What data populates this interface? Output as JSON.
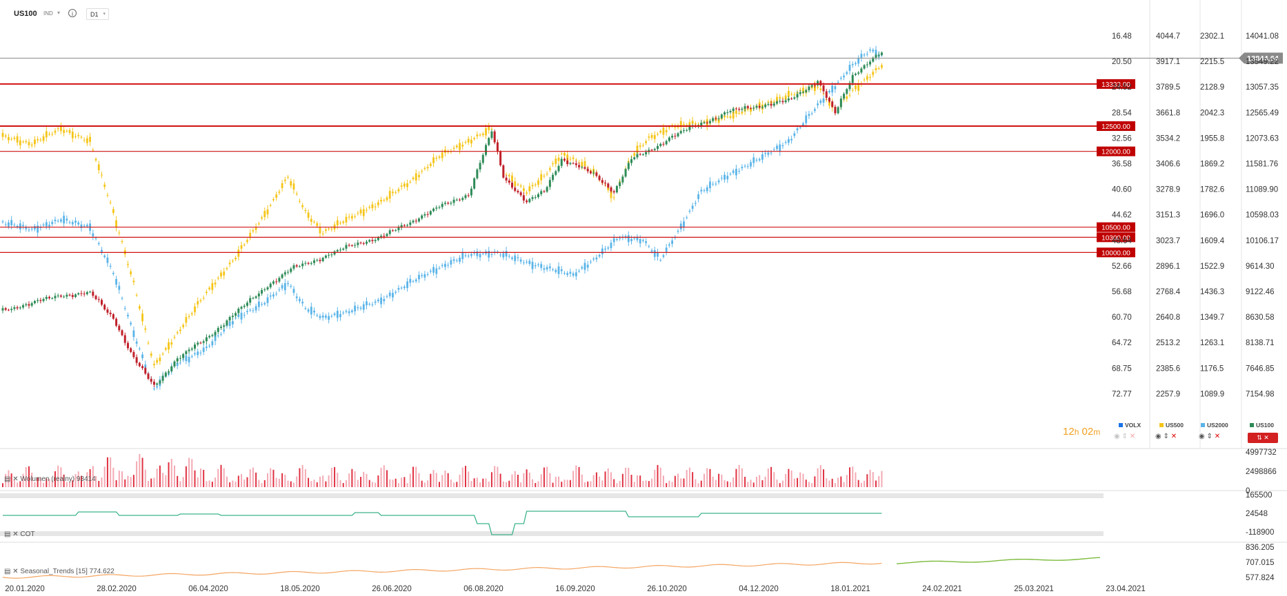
{
  "toolbar": {
    "symbol": "US100",
    "instrument_class": "IND",
    "info_glyph": "i",
    "timeframe": "D1",
    "caret_glyph": "▾"
  },
  "timer": {
    "hours": "12",
    "h_unit": "h",
    "minutes": "02",
    "m_unit": "m"
  },
  "legend": [
    {
      "name": "VOLX",
      "color": "#1a73e8"
    },
    {
      "name": "US500",
      "color": "#f5c518"
    },
    {
      "name": "US2000",
      "color": "#5ab4e8"
    },
    {
      "name": "US100",
      "color": "#2e8b57"
    }
  ],
  "current_price": "13844.64",
  "colors": {
    "up": "#2e8b57",
    "down": "#c0202a",
    "us500": "#f5c518",
    "us2000": "#5ab4e8",
    "level": "#d01010",
    "seasonal_past": "#f4a460",
    "seasonal_future": "#7cbb3c",
    "cot": "#3cb38a",
    "vol_up": "#f4a9b3",
    "vol_down": "#e03040"
  },
  "scales": {
    "volx": [
      "16.48",
      "20.50",
      "24.52",
      "28.54",
      "32.56",
      "36.58",
      "40.60",
      "44.62",
      "48.64",
      "52.66",
      "56.68",
      "60.70",
      "64.72",
      "68.75",
      "72.77"
    ],
    "us500": [
      "4044.7",
      "3917.1",
      "3789.5",
      "3661.8",
      "3534.2",
      "3406.6",
      "3278.9",
      "3151.3",
      "3023.7",
      "2896.1",
      "2768.4",
      "2640.8",
      "2513.2",
      "2385.6",
      "2257.9"
    ],
    "us2000": [
      "2302.1",
      "2215.5",
      "2128.9",
      "2042.3",
      "1955.8",
      "1869.2",
      "1782.6",
      "1696.0",
      "1609.4",
      "1522.9",
      "1436.3",
      "1349.7",
      "1263.1",
      "1176.5",
      "1089.9"
    ],
    "us100": [
      "14041.08",
      "13549.22",
      "13057.35",
      "12565.49",
      "12073.63",
      "11581.76",
      "11089.90",
      "10598.03",
      "10106.17",
      "9614.30",
      "9122.46",
      "8630.58",
      "8138.71",
      "7646.85",
      "7154.98"
    ]
  },
  "chart_data": {
    "type": "candlestick",
    "symbol": "US100",
    "timeframe": "D1",
    "ylim": [
      7154.98,
      14041.08
    ],
    "x_ticks": [
      "20.01.2020",
      "28.02.2020",
      "06.04.2020",
      "18.05.2020",
      "26.06.2020",
      "06.08.2020",
      "16.09.2020",
      "26.10.2020",
      "04.12.2020",
      "18.01.2021",
      "24.02.2021",
      "25.03.2021",
      "23.04.2021"
    ],
    "levels": [
      "13333.00",
      "12500.00",
      "12000.00",
      "10500.00",
      "10300.00",
      "10000.00"
    ],
    "us100_path": [
      [
        0,
        8850
      ],
      [
        10,
        9000
      ],
      [
        20,
        9150
      ],
      [
        30,
        9200
      ],
      [
        38,
        8700
      ],
      [
        45,
        7900
      ],
      [
        52,
        7350
      ],
      [
        60,
        7900
      ],
      [
        70,
        8300
      ],
      [
        80,
        8800
      ],
      [
        90,
        9300
      ],
      [
        100,
        9700
      ],
      [
        110,
        9900
      ],
      [
        120,
        10150
      ],
      [
        130,
        10300
      ],
      [
        140,
        10600
      ],
      [
        150,
        10900
      ],
      [
        160,
        11150
      ],
      [
        168,
        12400
      ],
      [
        172,
        11500
      ],
      [
        180,
        11000
      ],
      [
        186,
        11200
      ],
      [
        192,
        11850
      ],
      [
        198,
        11700
      ],
      [
        204,
        11500
      ],
      [
        210,
        11200
      ],
      [
        216,
        11850
      ],
      [
        222,
        12000
      ],
      [
        230,
        12300
      ],
      [
        240,
        12550
      ],
      [
        250,
        12800
      ],
      [
        260,
        12900
      ],
      [
        270,
        13000
      ],
      [
        280,
        13400
      ],
      [
        286,
        12750
      ],
      [
        292,
        13500
      ],
      [
        298,
        13800
      ],
      [
        302,
        13950
      ]
    ],
    "us500_path": [
      [
        0,
        12300
      ],
      [
        10,
        12150
      ],
      [
        20,
        12450
      ],
      [
        30,
        12200
      ],
      [
        38,
        10800
      ],
      [
        45,
        9400
      ],
      [
        52,
        7750
      ],
      [
        60,
        8400
      ],
      [
        70,
        9200
      ],
      [
        80,
        9900
      ],
      [
        90,
        10750
      ],
      [
        98,
        11500
      ],
      [
        104,
        10800
      ],
      [
        110,
        10400
      ],
      [
        120,
        10700
      ],
      [
        130,
        11000
      ],
      [
        140,
        11400
      ],
      [
        150,
        11900
      ],
      [
        160,
        12200
      ],
      [
        168,
        12450
      ],
      [
        172,
        11600
      ],
      [
        180,
        11200
      ],
      [
        186,
        11500
      ],
      [
        192,
        11950
      ],
      [
        198,
        11800
      ],
      [
        204,
        11550
      ],
      [
        210,
        11100
      ],
      [
        216,
        11900
      ],
      [
        222,
        12250
      ],
      [
        230,
        12500
      ],
      [
        240,
        12550
      ],
      [
        250,
        12700
      ],
      [
        260,
        12900
      ],
      [
        270,
        13100
      ],
      [
        280,
        13300
      ],
      [
        286,
        12800
      ],
      [
        292,
        13200
      ],
      [
        298,
        13500
      ],
      [
        302,
        13700
      ]
    ],
    "us2000_path": [
      [
        0,
        10600
      ],
      [
        10,
        10450
      ],
      [
        20,
        10650
      ],
      [
        30,
        10500
      ],
      [
        38,
        9600
      ],
      [
        45,
        8400
      ],
      [
        52,
        7300
      ],
      [
        60,
        7800
      ],
      [
        70,
        8100
      ],
      [
        80,
        8700
      ],
      [
        90,
        9000
      ],
      [
        98,
        9400
      ],
      [
        104,
        8900
      ],
      [
        110,
        8700
      ],
      [
        120,
        8850
      ],
      [
        130,
        9050
      ],
      [
        140,
        9400
      ],
      [
        150,
        9700
      ],
      [
        160,
        9950
      ],
      [
        170,
        10000
      ],
      [
        180,
        9800
      ],
      [
        190,
        9650
      ],
      [
        196,
        9550
      ],
      [
        204,
        9900
      ],
      [
        212,
        10300
      ],
      [
        220,
        10250
      ],
      [
        226,
        9850
      ],
      [
        232,
        10400
      ],
      [
        240,
        11200
      ],
      [
        250,
        11550
      ],
      [
        260,
        11850
      ],
      [
        270,
        12200
      ],
      [
        280,
        12900
      ],
      [
        286,
        13300
      ],
      [
        292,
        13700
      ],
      [
        298,
        14000
      ],
      [
        302,
        13900
      ]
    ],
    "volume": {
      "scale": [
        "4997732",
        "2498866",
        "0"
      ],
      "label": "Wolumen (realny)",
      "value": "93414"
    },
    "cot": {
      "scale": [
        "165500",
        "24548",
        "-118900"
      ],
      "label": "COT"
    },
    "seasonal": {
      "scale": [
        "836.205",
        "707.015",
        "577.824"
      ],
      "label": "Seasonal_Trends [15]",
      "value": "774.622"
    }
  }
}
